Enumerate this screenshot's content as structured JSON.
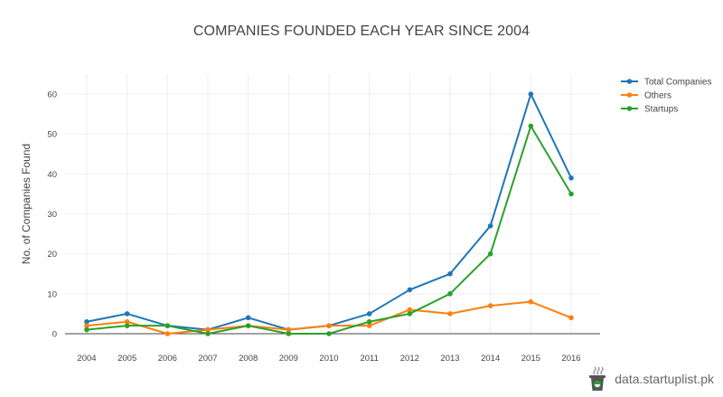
{
  "chart_data": {
    "type": "line",
    "title": "COMPANIES FOUNDED EACH YEAR SINCE 2004",
    "xlabel": "",
    "ylabel": "No. of Companies Found",
    "categories": [
      "2004",
      "2005",
      "2006",
      "2007",
      "2008",
      "2009",
      "2010",
      "2011",
      "2012",
      "2013",
      "2014",
      "2015",
      "2016"
    ],
    "ylim": [
      0,
      65
    ],
    "yticks": [
      0,
      10,
      20,
      30,
      40,
      50,
      60
    ],
    "grid": true,
    "legend_position": "top-right",
    "series": [
      {
        "name": "Total Companies",
        "color": "#1f77b4",
        "values": [
          3,
          5,
          2,
          1,
          4,
          1,
          2,
          5,
          11,
          15,
          27,
          60,
          39
        ]
      },
      {
        "name": "Others",
        "color": "#ff7f0e",
        "values": [
          2,
          3,
          0,
          1,
          2,
          1,
          2,
          2,
          6,
          5,
          7,
          8,
          4
        ]
      },
      {
        "name": "Startups",
        "color": "#2ca02c",
        "values": [
          1,
          2,
          2,
          0,
          2,
          0,
          0,
          3,
          5,
          10,
          20,
          52,
          35
        ]
      }
    ]
  },
  "branding": {
    "text": "data.startuplist.pk",
    "icon": "coffee-cup-logo-icon"
  }
}
